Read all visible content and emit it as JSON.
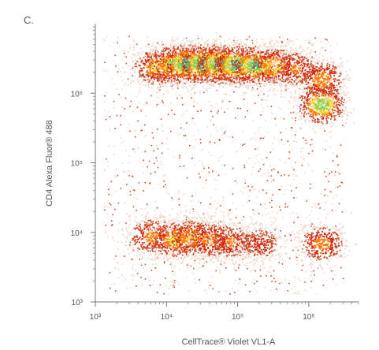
{
  "figure": {
    "panel_label": "C."
  },
  "chart_data": {
    "type": "scatter",
    "subtype": "flow-cytometry density plot",
    "xlabel": "CellTrace® Violet VL1-A",
    "ylabel": "CD4 Alexa Fluor® 488",
    "x_scale": "log",
    "y_scale": "log",
    "xlim": [
      1000,
      5000000
    ],
    "ylim": [
      1000,
      10000000
    ],
    "x_ticks": [
      {
        "value": 1000,
        "label": "10³"
      },
      {
        "value": 10000,
        "label": "10⁴"
      },
      {
        "value": 100000,
        "label": "10⁵"
      },
      {
        "value": 1000000,
        "label": "10⁶"
      }
    ],
    "y_ticks": [
      {
        "value": 1000,
        "label": "10³"
      },
      {
        "value": 10000,
        "label": "10⁴"
      },
      {
        "value": 100000,
        "label": "10⁵"
      },
      {
        "value": 1000000,
        "label": "10⁶"
      }
    ],
    "grid": false,
    "color_scale": [
      "#f2d6c8",
      "#c9502a",
      "#d62a10",
      "#ff7a00",
      "#f3d21a",
      "#8fd14a",
      "#3cc09a"
    ],
    "populations": [
      {
        "x": 7000,
        "y": 2400000,
        "density": 0.55
      },
      {
        "x": 12000,
        "y": 2600000,
        "density": 0.75
      },
      {
        "x": 19000,
        "y": 2700000,
        "density": 0.95
      },
      {
        "x": 32000,
        "y": 2700000,
        "density": 0.95
      },
      {
        "x": 55000,
        "y": 2650000,
        "density": 0.9
      },
      {
        "x": 95000,
        "y": 2600000,
        "density": 0.9
      },
      {
        "x": 170000,
        "y": 2550000,
        "density": 0.85
      },
      {
        "x": 320000,
        "y": 2500000,
        "density": 0.6
      },
      {
        "x": 650000,
        "y": 2300000,
        "density": 0.4
      },
      {
        "x": 1500000,
        "y": 700000,
        "density": 0.8
      },
      {
        "x": 1500000,
        "y": 1600000,
        "density": 0.5
      },
      {
        "x": 1500000,
        "y": 7000,
        "density": 0.45
      },
      {
        "x": 6000,
        "y": 9000,
        "density": 0.45
      },
      {
        "x": 13000,
        "y": 8000,
        "density": 0.6
      },
      {
        "x": 22000,
        "y": 8500,
        "density": 0.55
      },
      {
        "x": 40000,
        "y": 8000,
        "density": 0.45
      },
      {
        "x": 80000,
        "y": 7500,
        "density": 0.4
      },
      {
        "x": 200000,
        "y": 7000,
        "density": 0.3
      }
    ]
  }
}
